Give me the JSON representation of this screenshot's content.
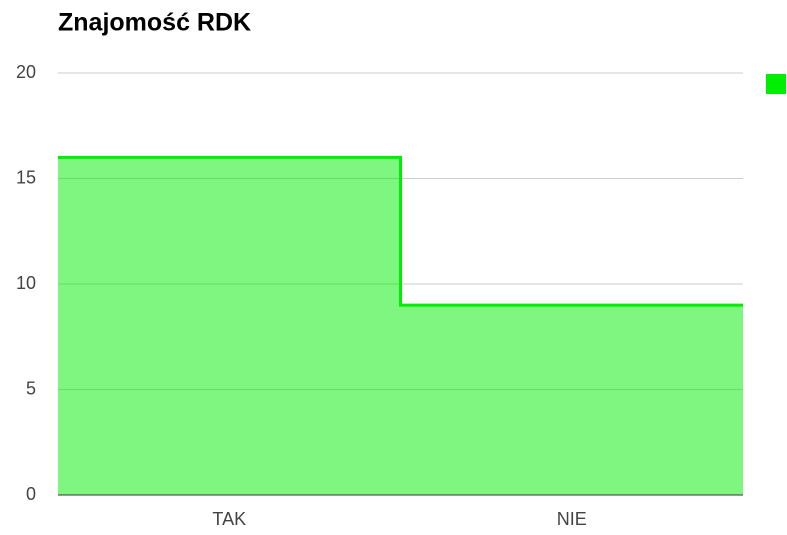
{
  "chart_data": {
    "type": "stepped_area",
    "title": "Znajomość RDK",
    "categories": [
      "TAK",
      "NIE"
    ],
    "series": [
      {
        "color": "#00ee00",
        "values": [
          16,
          9
        ]
      }
    ],
    "ylim": [
      0,
      20
    ],
    "yticks": [
      0,
      5,
      10,
      15,
      20
    ],
    "grid": true
  }
}
